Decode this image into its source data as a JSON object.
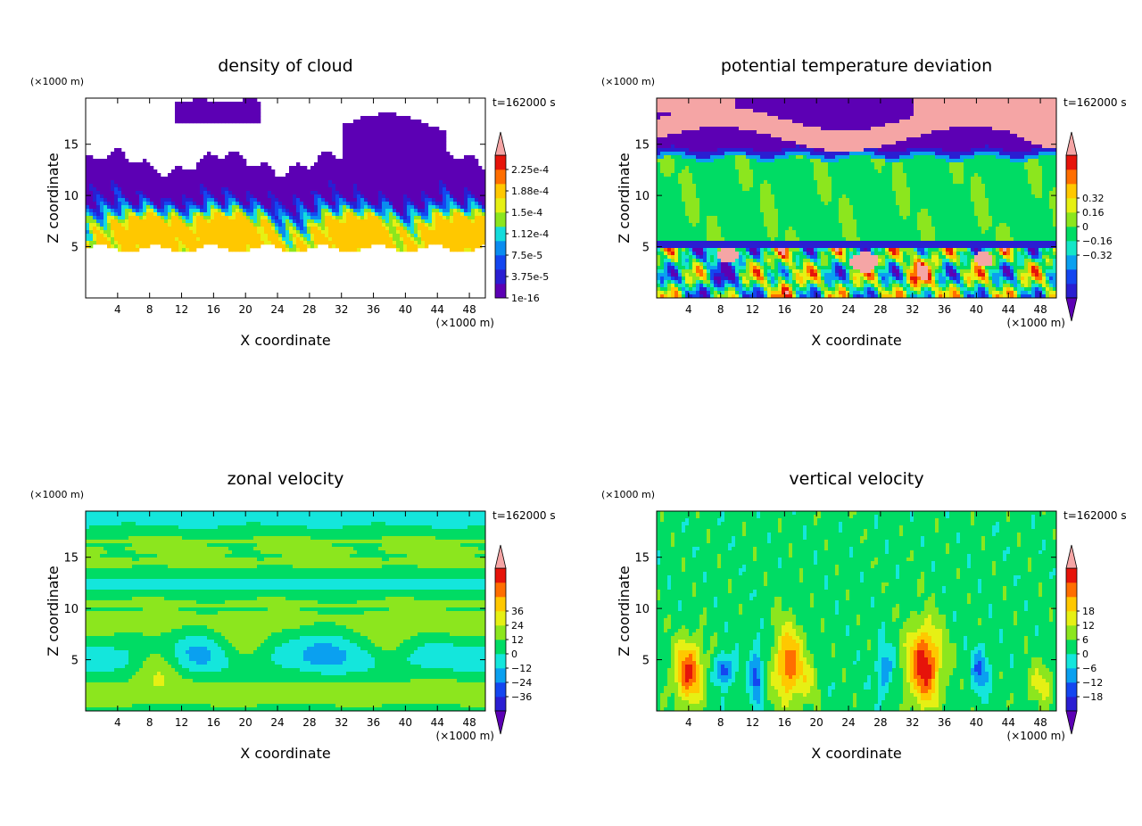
{
  "figure": {
    "background": "#ffffff"
  },
  "chart_data": [
    {
      "type": "heatmap",
      "title": "density of cloud",
      "xlabel": "X coordinate",
      "ylabel": "Z coordinate",
      "x_unit": "(×1000 m)",
      "y_unit": "(×1000 m)",
      "time_label": "t=162000 s",
      "xlim": [
        0,
        50
      ],
      "ylim": [
        0,
        19.5
      ],
      "xticks": [
        4,
        8,
        12,
        16,
        20,
        24,
        28,
        32,
        36,
        40,
        44,
        48
      ],
      "yticks": [
        5,
        10,
        15
      ],
      "colorbar": {
        "levels": [
          "1e-16",
          "3.75e-5",
          "7.5e-5",
          "1.12e-4",
          "1.5e-4",
          "1.88e-4",
          "2.25e-4"
        ],
        "colors": [
          "#5c00b4",
          "#2a1ed2",
          "#1446f0",
          "#0a8cf0",
          "#14dcdc",
          "#8ce61e",
          "#e6f014",
          "#ffc800",
          "#ff6e00",
          "#e6140a",
          "#f5a5a5"
        ],
        "arrow_top": true,
        "arrow_bottom": false
      },
      "field": "cloud"
    },
    {
      "type": "heatmap",
      "title": "potential temperature deviation",
      "xlabel": "X coordinate",
      "ylabel": "Z coordinate",
      "x_unit": "(×1000 m)",
      "y_unit": "(×1000 m)",
      "time_label": "t=162000 s",
      "xlim": [
        0,
        50
      ],
      "ylim": [
        0,
        19.5
      ],
      "xticks": [
        4,
        8,
        12,
        16,
        20,
        24,
        28,
        32,
        36,
        40,
        44,
        48
      ],
      "yticks": [
        5,
        10,
        15
      ],
      "colorbar": {
        "levels": [
          "−0.32",
          "−0.16",
          "0",
          "0.16",
          "0.32"
        ],
        "colors": [
          "#5c00b4",
          "#2a1ed2",
          "#1446f0",
          "#0aa0f0",
          "#14e6c8",
          "#00dc64",
          "#8ce61e",
          "#e6f014",
          "#ffc800",
          "#ff6e00",
          "#e6140a",
          "#f5a5a5"
        ],
        "arrow_top": true,
        "arrow_bottom": true
      },
      "field": "theta"
    },
    {
      "type": "heatmap",
      "title": "zonal velocity",
      "xlabel": "X coordinate",
      "ylabel": "Z coordinate",
      "x_unit": "(×1000 m)",
      "y_unit": "(×1000 m)",
      "time_label": "t=162000 s",
      "xlim": [
        0,
        50
      ],
      "ylim": [
        0,
        19.5
      ],
      "xticks": [
        4,
        8,
        12,
        16,
        20,
        24,
        28,
        32,
        36,
        40,
        44,
        48
      ],
      "yticks": [
        5,
        10,
        15
      ],
      "colorbar": {
        "levels": [
          "−36",
          "−24",
          "−12",
          "0",
          "12",
          "24",
          "36"
        ],
        "colors": [
          "#5c00b4",
          "#2a1ed2",
          "#1446f0",
          "#0aa0f0",
          "#14e6dc",
          "#00dc64",
          "#8ce61e",
          "#e6f014",
          "#ffc800",
          "#ff6e00",
          "#e6140a",
          "#f5a5a5"
        ],
        "arrow_top": true,
        "arrow_bottom": true
      },
      "field": "u"
    },
    {
      "type": "heatmap",
      "title": "vertical velocity",
      "xlabel": "X coordinate",
      "ylabel": "Z coordinate",
      "x_unit": "(×1000 m)",
      "y_unit": "(×1000 m)",
      "time_label": "t=162000 s",
      "xlim": [
        0,
        50
      ],
      "ylim": [
        0,
        19.5
      ],
      "xticks": [
        4,
        8,
        12,
        16,
        20,
        24,
        28,
        32,
        36,
        40,
        44,
        48
      ],
      "yticks": [
        5,
        10,
        15
      ],
      "colorbar": {
        "levels": [
          "−18",
          "−12",
          "−6",
          "0",
          "6",
          "12",
          "18"
        ],
        "colors": [
          "#5c00b4",
          "#2a1ed2",
          "#1446f0",
          "#0aa0f0",
          "#14e6dc",
          "#00dc64",
          "#8ce61e",
          "#e6f014",
          "#ffc800",
          "#ff6e00",
          "#e6140a",
          "#f5a5a5"
        ],
        "arrow_top": true,
        "arrow_bottom": true
      },
      "field": "w"
    }
  ]
}
